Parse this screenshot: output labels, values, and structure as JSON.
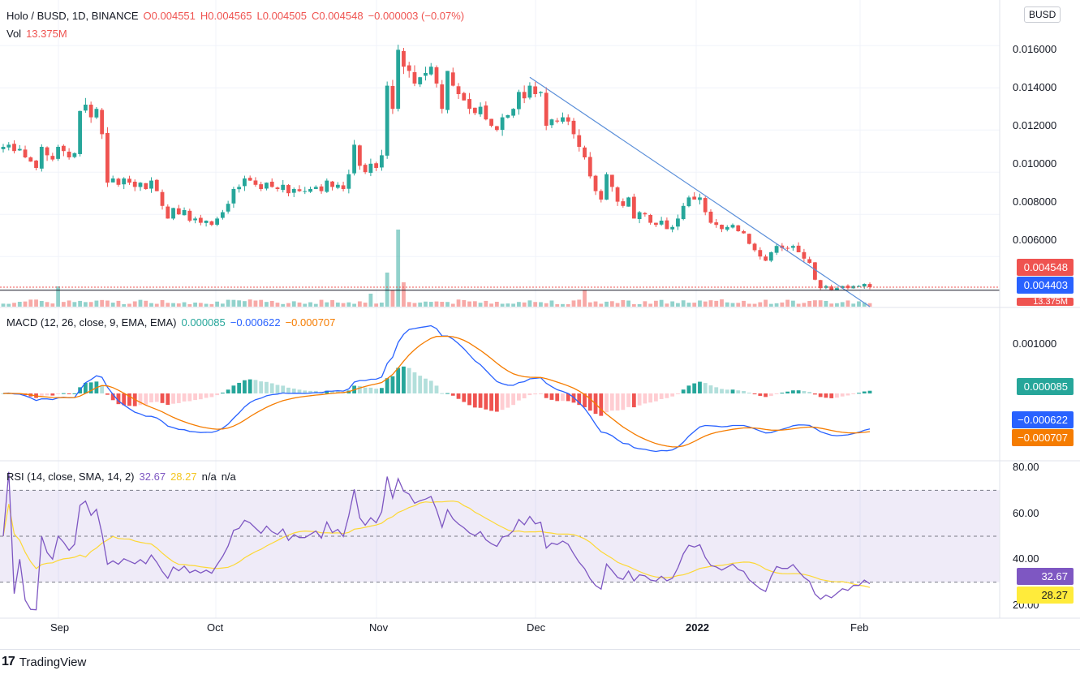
{
  "header": {
    "symbol": "Holo / BUSD, 1D, BINANCE",
    "open": "O0.004551",
    "high": "H0.004565",
    "low": "L0.004505",
    "close": "C0.004548",
    "change": "−0.000003 (−0.07%)",
    "vol_label": "Vol",
    "vol_value": "13.375M",
    "currency": "BUSD"
  },
  "macd_legend": {
    "label": "MACD (12, 26, close, 9, EMA, EMA)",
    "hist": "0.000085",
    "macd": "−0.000622",
    "signal": "−0.000707"
  },
  "rsi_legend": {
    "label": "RSI (14, close, SMA, 14, 2)",
    "rsi": "32.67",
    "sma": "28.27",
    "na1": "n/a",
    "na2": "n/a"
  },
  "badges": {
    "price": "0.004548",
    "level": "0.004403",
    "volume": "13.375M",
    "macd_hist": "0.000085",
    "macd": "−0.000622",
    "signal": "−0.000707",
    "rsi": "32.67",
    "rsi_sma": "28.27"
  },
  "price_axis": [
    "0.016000",
    "0.014000",
    "0.012000",
    "0.010000",
    "0.008000",
    "0.006000"
  ],
  "macd_axis": [
    "0.001000"
  ],
  "rsi_axis": [
    "80.00",
    "60.00",
    "40.00",
    "20.00"
  ],
  "date_axis": [
    "Sep",
    "Oct",
    "Nov",
    "Dec",
    "2022",
    "Feb"
  ],
  "footer": {
    "logo_text": "TradingView"
  },
  "colors": {
    "up": "#26a69a",
    "down": "#ef5350",
    "macd": "#2962ff",
    "signal": "#f57c00",
    "rsi": "#7e57c2",
    "rsi_sma": "#fdd835",
    "trendline": "#5b8fd9"
  },
  "chart_data": [
    {
      "type": "candlestick",
      "title": "Holo / BUSD, 1D, BINANCE",
      "x_range": [
        "2021-08-20",
        "2022-02-02"
      ],
      "ylim": [
        0.0037,
        0.0177
      ],
      "close_series_approx": [
        0.0112,
        0.0113,
        0.011,
        0.0111,
        0.0107,
        0.0105,
        0.0102,
        0.0112,
        0.0108,
        0.0106,
        0.0112,
        0.011,
        0.0107,
        0.0109,
        0.0129,
        0.0132,
        0.0126,
        0.013,
        0.0118,
        0.0095,
        0.0097,
        0.0094,
        0.0097,
        0.0095,
        0.0093,
        0.0095,
        0.0092,
        0.0096,
        0.0091,
        0.0084,
        0.0078,
        0.0083,
        0.008,
        0.0082,
        0.0077,
        0.0078,
        0.0076,
        0.0077,
        0.0075,
        0.0078,
        0.0081,
        0.0085,
        0.0092,
        0.0093,
        0.0097,
        0.0096,
        0.0094,
        0.0092,
        0.0095,
        0.0093,
        0.0092,
        0.0094,
        0.009,
        0.0092,
        0.0091,
        0.0091,
        0.0092,
        0.0093,
        0.0091,
        0.0096,
        0.0093,
        0.0094,
        0.0092,
        0.0099,
        0.0113,
        0.0103,
        0.01,
        0.0104,
        0.0102,
        0.0108,
        0.0141,
        0.013,
        0.0158,
        0.015,
        0.0148,
        0.0142,
        0.0145,
        0.0147,
        0.015,
        0.0142,
        0.013,
        0.0148,
        0.0141,
        0.0137,
        0.0134,
        0.013,
        0.0128,
        0.0131,
        0.0125,
        0.0122,
        0.012,
        0.0126,
        0.0127,
        0.013,
        0.0138,
        0.0135,
        0.0141,
        0.0137,
        0.0138,
        0.0122,
        0.0125,
        0.0124,
        0.0126,
        0.0124,
        0.0118,
        0.0112,
        0.0107,
        0.0098,
        0.0091,
        0.0087,
        0.0099,
        0.0093,
        0.0086,
        0.0084,
        0.0088,
        0.0078,
        0.0081,
        0.008,
        0.0076,
        0.0075,
        0.0077,
        0.0073,
        0.0074,
        0.0078,
        0.0084,
        0.0088,
        0.0087,
        0.0088,
        0.0081,
        0.0076,
        0.0075,
        0.0073,
        0.0074,
        0.0075,
        0.0072,
        0.0071,
        0.0066,
        0.0063,
        0.006,
        0.0058,
        0.0062,
        0.0065,
        0.0064,
        0.0064,
        0.0065,
        0.0062,
        0.0059,
        0.0057,
        0.0049,
        0.0045,
        0.0046,
        0.0044,
        0.0045,
        0.0046,
        0.0045,
        0.0046,
        0.0046,
        0.0047,
        0.004548
      ],
      "trendline": [
        [
          "2021-11-24",
          0.0144
        ],
        [
          "2022-02-02",
          0.0037
        ]
      ],
      "horizontal_line": 0.004403,
      "last_price": 0.004548
    },
    {
      "type": "bar",
      "title": "Vol",
      "last_value": "13.375M"
    },
    {
      "type": "line",
      "title": "MACD (12, 26, close, 9, EMA, EMA)",
      "series": [
        {
          "name": "MACD",
          "last": -0.000622
        },
        {
          "name": "Signal",
          "last": -0.000707
        },
        {
          "name": "Histogram",
          "last": 8.5e-05
        }
      ],
      "ylim": [
        -0.0015,
        0.0015
      ]
    },
    {
      "type": "line",
      "title": "RSI (14, close, SMA, 14, 2)",
      "ylim": [
        15,
        85
      ],
      "bands": [
        30,
        50,
        70
      ],
      "series": [
        {
          "name": "RSI",
          "last": 32.67
        },
        {
          "name": "RSI-based MA",
          "last": 28.27
        }
      ]
    }
  ]
}
